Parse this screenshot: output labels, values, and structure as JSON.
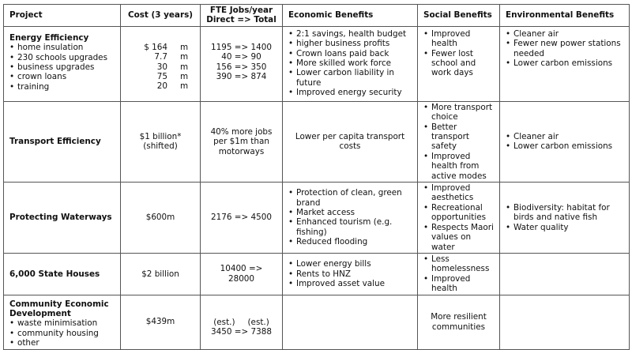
{
  "table": {
    "header": [
      "Project",
      "Cost (3 years)",
      {
        "lines": [
          "FTE Jobs/year",
          "Direct => Total"
        ]
      },
      "Economic Benefits",
      "Social Benefits",
      "Environmental Benefits"
    ],
    "rows": [
      [
        {
          "title": "Energy Efficiency",
          "bullets": [
            "home insulation",
            "230 schools upgrades",
            "business upgrades",
            "crown loans",
            "training"
          ]
        },
        {
          "lines": [
            [
              "$ 164",
              "m"
            ],
            [
              "7.7",
              "m"
            ],
            [
              "30",
              "m"
            ],
            [
              "75",
              "m"
            ],
            [
              "20",
              "m"
            ]
          ]
        },
        {
          "lines": [
            "1195 => 1400",
            "40 => 90",
            "156 => 350",
            "390 => 874"
          ]
        },
        {
          "bullets": [
            "2:1 savings, health budget",
            "higher business profits",
            "Crown loans paid back",
            "More skilled work force",
            "Lower carbon liability in future",
            "Improved energy security"
          ]
        },
        {
          "bullets": [
            "Improved health",
            "Fewer lost school and work days"
          ]
        },
        {
          "bullets": [
            "Cleaner air",
            "Fewer new power stations needed",
            "Lower carbon emissions"
          ]
        }
      ],
      [
        {
          "title": "Transport Efficiency"
        },
        {
          "lines": [
            "$1 billion*",
            "(shifted)"
          ]
        },
        "40% more jobs per $1m than motorways",
        "Lower per capita transport costs",
        {
          "bullets": [
            "More transport choice",
            "Better transport safety",
            "Improved health from active modes"
          ]
        },
        {
          "bullets": [
            "Cleaner air",
            "Lower carbon emissions"
          ]
        }
      ],
      [
        {
          "title": "Protecting Waterways"
        },
        "$600m",
        "2176 => 4500",
        {
          "bullets": [
            "Protection of clean, green brand",
            "Market access",
            "Enhanced tourism (e.g. fishing)",
            "Reduced flooding"
          ]
        },
        {
          "bullets": [
            "Improved aesthetics",
            "Recreational opportunities",
            "Respects Maori values on water"
          ]
        },
        {
          "bullets": [
            "Biodiversity: habitat for birds and native fish",
            "Water quality"
          ]
        }
      ],
      [
        {
          "title": "6,000 State Houses"
        },
        "$2 billion",
        "10400 => 28000",
        {
          "bullets": [
            "Lower energy bills",
            "Rents to HNZ",
            "Improved asset value"
          ]
        },
        {
          "bullets": [
            "Less homelessness",
            "Improved health"
          ]
        },
        null
      ],
      [
        {
          "title": "Community Economic Development",
          "bullets": [
            "waste minimisation",
            "community housing",
            "other"
          ]
        },
        "$439m",
        {
          "lines": [
            [
              "(est.)",
              "(est.)"
            ],
            "3450 => 7388"
          ]
        },
        null,
        "More resilient communities",
        null
      ]
    ]
  }
}
